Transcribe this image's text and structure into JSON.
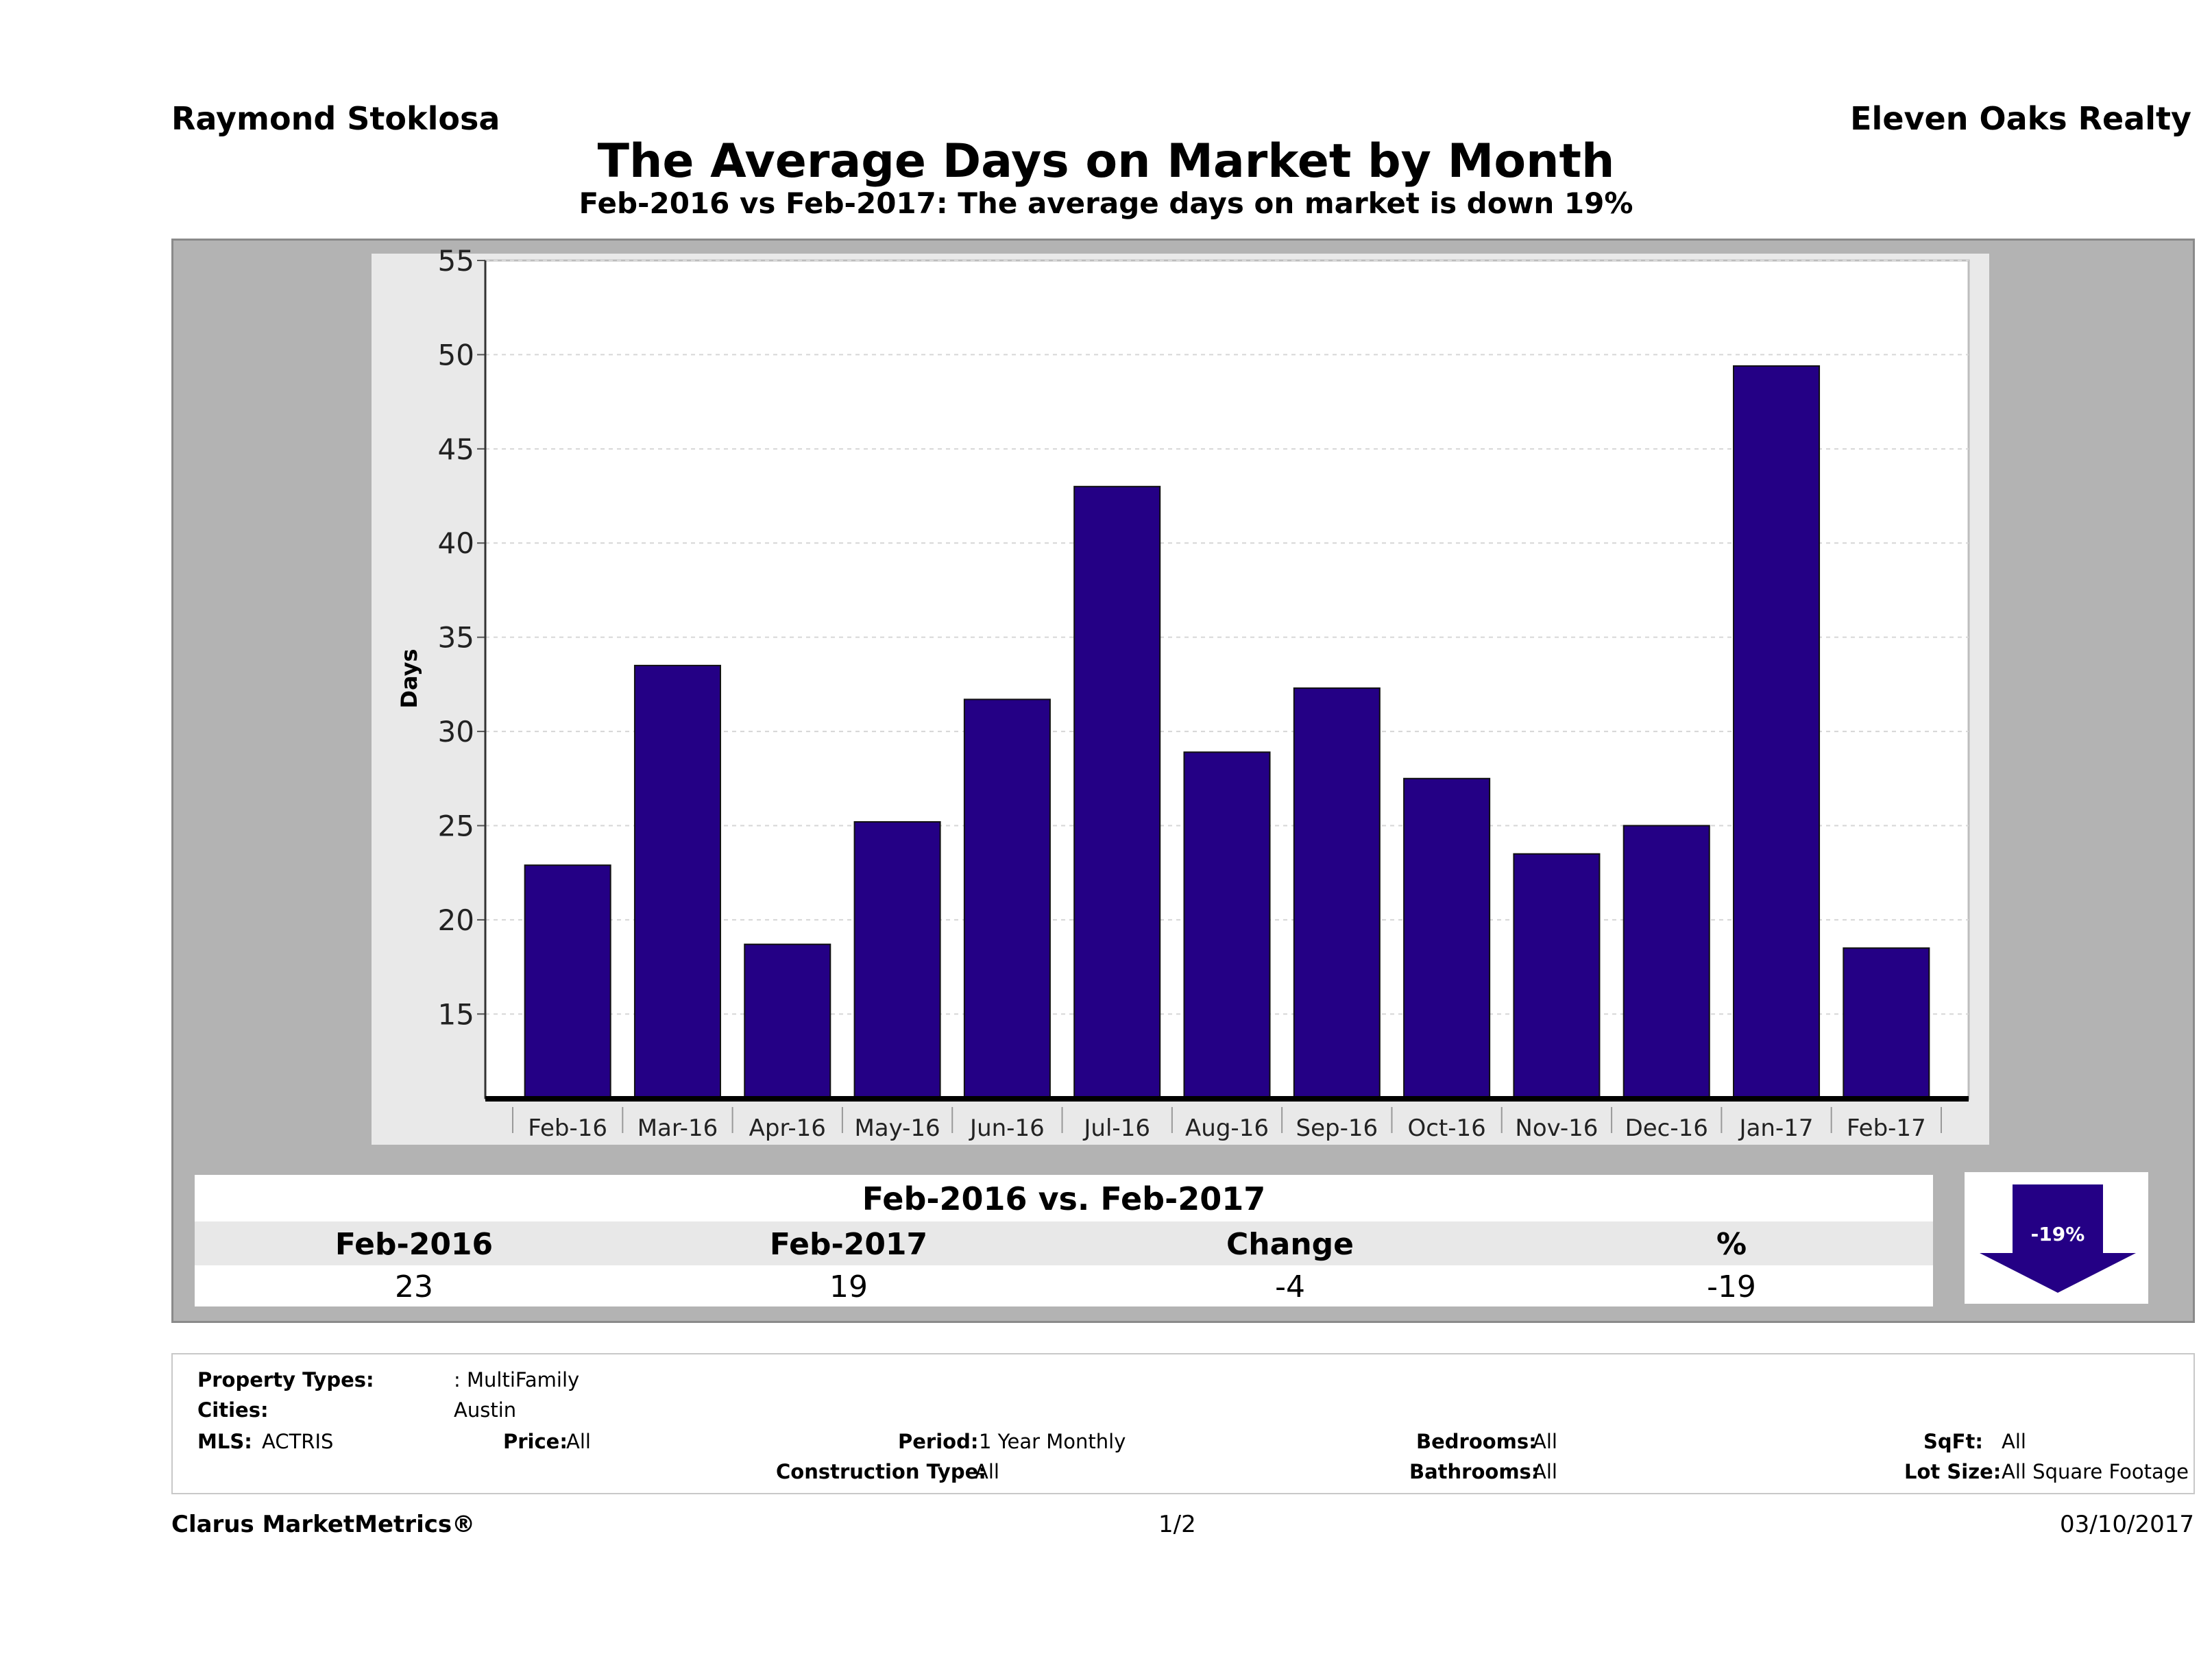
{
  "header": {
    "agent": "Raymond Stoklosa",
    "company": "Eleven Oaks Realty",
    "title": "The Average Days on Market by Month",
    "subtitle": "Feb-2016 vs Feb-2017: The average days on market is down 19%"
  },
  "chart_data": {
    "type": "bar",
    "title": "The Average Days on Market by Month",
    "subtitle": "Feb-2016 vs Feb-2017: The average days on market is down 19%",
    "xlabel": "",
    "ylabel": "Days",
    "ylim": [
      10.5,
      55
    ],
    "yticks": [
      15,
      20,
      25,
      30,
      35,
      40,
      45,
      50,
      55
    ],
    "grid": true,
    "bar_color": "#240085",
    "categories": [
      "Feb-16",
      "Mar-16",
      "Apr-16",
      "May-16",
      "Jun-16",
      "Jul-16",
      "Aug-16",
      "Sep-16",
      "Oct-16",
      "Nov-16",
      "Dec-16",
      "Jan-17",
      "Feb-17"
    ],
    "values": [
      22.9,
      33.5,
      18.7,
      25.2,
      31.7,
      43.0,
      28.9,
      32.3,
      27.5,
      23.5,
      25.0,
      49.4,
      18.5
    ]
  },
  "comparison": {
    "title": "Feb-2016 vs. Feb-2017",
    "headers": [
      "Feb-2016",
      "Feb-2017",
      "Change",
      "%"
    ],
    "values": [
      "23",
      "19",
      "-4",
      "-19"
    ],
    "badge": "-19%",
    "badge_color": "#240085"
  },
  "criteria": {
    "property_types_label": "Property Types:",
    "property_types_value": ": MultiFamily",
    "cities_label": "Cities:",
    "cities_value": "Austin",
    "mls_label": "MLS:",
    "mls_value": "ACTRIS",
    "price_label": "Price:",
    "price_value": "All",
    "period_label": "Period:",
    "period_value": "1 Year Monthly",
    "construction_label": "Construction Type:",
    "construction_value": "All",
    "bedrooms_label": "Bedrooms:",
    "bedrooms_value": "All",
    "bathrooms_label": "Bathrooms:",
    "bathrooms_value": "All",
    "sqft_label": "SqFt:",
    "sqft_value": "All",
    "lotsize_label": "Lot Size:",
    "lotsize_value": "All Square Footage"
  },
  "footer": {
    "brand": "Clarus MarketMetrics®",
    "page": "1/2",
    "date": "03/10/2017"
  }
}
